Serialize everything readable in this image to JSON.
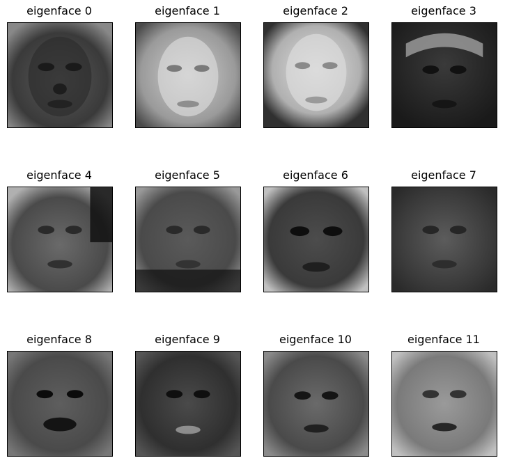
{
  "figure": {
    "panels": [
      {
        "title": "eigenface 0",
        "tone": "dark"
      },
      {
        "title": "eigenface 1",
        "tone": "light"
      },
      {
        "title": "eigenface 2",
        "tone": "light"
      },
      {
        "title": "eigenface 3",
        "tone": "dark"
      },
      {
        "title": "eigenface 4",
        "tone": "mid"
      },
      {
        "title": "eigenface 5",
        "tone": "mid"
      },
      {
        "title": "eigenface 6",
        "tone": "mid"
      },
      {
        "title": "eigenface 7",
        "tone": "dark"
      },
      {
        "title": "eigenface 8",
        "tone": "mid"
      },
      {
        "title": "eigenface 9",
        "tone": "dark"
      },
      {
        "title": "eigenface 10",
        "tone": "mid"
      },
      {
        "title": "eigenface 11",
        "tone": "light"
      }
    ]
  }
}
